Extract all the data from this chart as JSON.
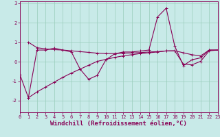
{
  "xlabel": "Windchill (Refroidissement éolien,°C)",
  "background_color": "#c8eae8",
  "line_color": "#880055",
  "xlim": [
    0,
    23
  ],
  "ylim": [
    -2.6,
    3.1
  ],
  "yticks": [
    -2,
    -1,
    0,
    1,
    2,
    3
  ],
  "xticks": [
    0,
    1,
    2,
    3,
    4,
    5,
    6,
    7,
    8,
    9,
    10,
    11,
    12,
    13,
    14,
    15,
    16,
    17,
    18,
    19,
    20,
    21,
    22,
    23
  ],
  "series": [
    {
      "x": [
        0,
        1,
        2,
        3,
        4,
        5,
        6,
        7,
        8,
        9,
        10,
        11,
        12,
        13,
        14,
        15,
        16,
        17,
        18,
        19,
        20,
        21,
        22,
        23
      ],
      "y": [
        -0.65,
        -1.85,
        0.6,
        0.6,
        0.7,
        0.6,
        0.5,
        -0.38,
        -0.9,
        -0.7,
        0.1,
        0.4,
        0.5,
        0.5,
        0.55,
        0.6,
        2.3,
        2.75,
        0.8,
        -0.2,
        0.1,
        0.2,
        0.6,
        0.6
      ]
    },
    {
      "x": [
        1,
        2,
        3,
        4,
        5,
        6,
        7,
        8,
        9,
        10,
        11,
        12,
        13,
        14,
        15,
        16,
        17,
        18,
        19,
        20,
        21,
        22,
        23
      ],
      "y": [
        1.0,
        0.72,
        0.66,
        0.62,
        0.6,
        0.56,
        0.52,
        0.48,
        0.44,
        0.42,
        0.42,
        0.44,
        0.45,
        0.47,
        0.5,
        0.52,
        0.55,
        0.56,
        0.46,
        0.36,
        0.3,
        0.6,
        0.6
      ]
    },
    {
      "x": [
        1,
        2,
        3,
        4,
        5,
        6,
        7,
        8,
        9,
        10,
        11,
        12,
        13,
        14,
        15,
        16,
        17,
        18,
        19,
        20,
        21,
        22,
        23
      ],
      "y": [
        -1.85,
        -1.55,
        -1.3,
        -1.05,
        -0.8,
        -0.58,
        -0.38,
        -0.18,
        0.02,
        0.12,
        0.22,
        0.3,
        0.36,
        0.42,
        0.46,
        0.5,
        0.56,
        0.56,
        -0.12,
        -0.16,
        0.02,
        0.56,
        0.6
      ]
    }
  ],
  "grid_color": "#99ccbb",
  "tick_fontsize": 5.0,
  "xlabel_fontsize": 6.5
}
